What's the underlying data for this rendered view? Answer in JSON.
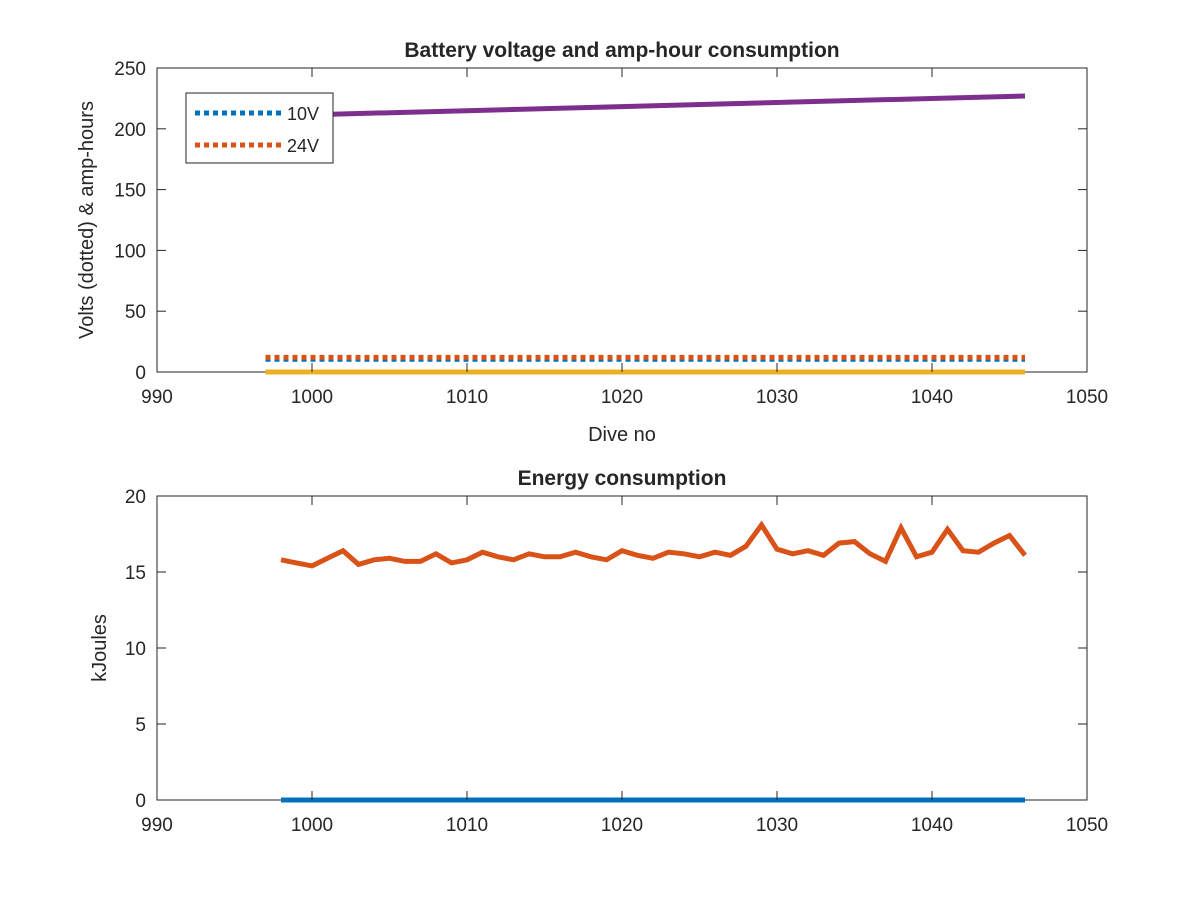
{
  "chart_data": [
    {
      "type": "line",
      "title": "Battery voltage and amp-hour consumption",
      "xlabel": "Dive no",
      "ylabel": "Volts (dotted) & amp-hours",
      "xlim": [
        990,
        1050
      ],
      "ylim": [
        0,
        250
      ],
      "xticks": [
        "990",
        "1000",
        "1010",
        "1020",
        "1030",
        "1040",
        "1050"
      ],
      "yticks": [
        "0",
        "50",
        "100",
        "150",
        "200",
        "250"
      ],
      "legend_placement": "top-left",
      "grid": false,
      "series": [
        {
          "name": "10V",
          "style": "dotted",
          "color": "#0072BD",
          "x": [
            997,
            1046
          ],
          "y": [
            10.5,
            10.5
          ]
        },
        {
          "name": "24V",
          "style": "dotted",
          "color": "#D95319",
          "x": [
            997,
            1046
          ],
          "y": [
            12,
            12
          ]
        },
        {
          "style": "solid",
          "color": "#EDB120",
          "x": [
            997,
            1046
          ],
          "y": [
            0,
            0
          ]
        },
        {
          "style": "solid",
          "color": "#7E2F8E",
          "x": [
            997,
            1046
          ],
          "y": [
            210.5,
            227
          ]
        }
      ]
    },
    {
      "type": "line",
      "title": "Energy consumption",
      "xlabel": "",
      "ylabel": "kJoules",
      "xlim": [
        990,
        1050
      ],
      "ylim": [
        0,
        20
      ],
      "xticks": [
        "990",
        "1000",
        "1010",
        "1020",
        "1030",
        "1040",
        "1050"
      ],
      "yticks": [
        "0",
        "5",
        "10",
        "15",
        "20"
      ],
      "grid": false,
      "series": [
        {
          "style": "solid",
          "color": "#0072BD",
          "x": [
            998,
            1046
          ],
          "y": [
            0,
            0
          ]
        },
        {
          "style": "solid",
          "color": "#D95319",
          "x": [
            998,
            999,
            1000,
            1001,
            1002,
            1003,
            1004,
            1005,
            1006,
            1007,
            1008,
            1009,
            1010,
            1011,
            1012,
            1013,
            1014,
            1015,
            1016,
            1017,
            1018,
            1019,
            1020,
            1021,
            1022,
            1023,
            1024,
            1025,
            1026,
            1027,
            1028,
            1029,
            1030,
            1031,
            1032,
            1033,
            1034,
            1035,
            1036,
            1037,
            1038,
            1039,
            1040,
            1041,
            1042,
            1043,
            1044,
            1045,
            1046
          ],
          "y": [
            15.8,
            15.6,
            15.4,
            15.9,
            16.4,
            15.5,
            15.8,
            15.9,
            15.7,
            15.7,
            16.2,
            15.6,
            15.8,
            16.3,
            16.0,
            15.8,
            16.2,
            16.0,
            16.0,
            16.3,
            16.0,
            15.8,
            16.4,
            16.1,
            15.9,
            16.3,
            16.2,
            16.0,
            16.3,
            16.1,
            16.7,
            18.1,
            16.5,
            16.2,
            16.4,
            16.1,
            16.9,
            17.0,
            16.2,
            15.7,
            17.9,
            16.0,
            16.3,
            17.8,
            16.4,
            16.3,
            16.9,
            17.4,
            16.1
          ]
        }
      ]
    }
  ]
}
